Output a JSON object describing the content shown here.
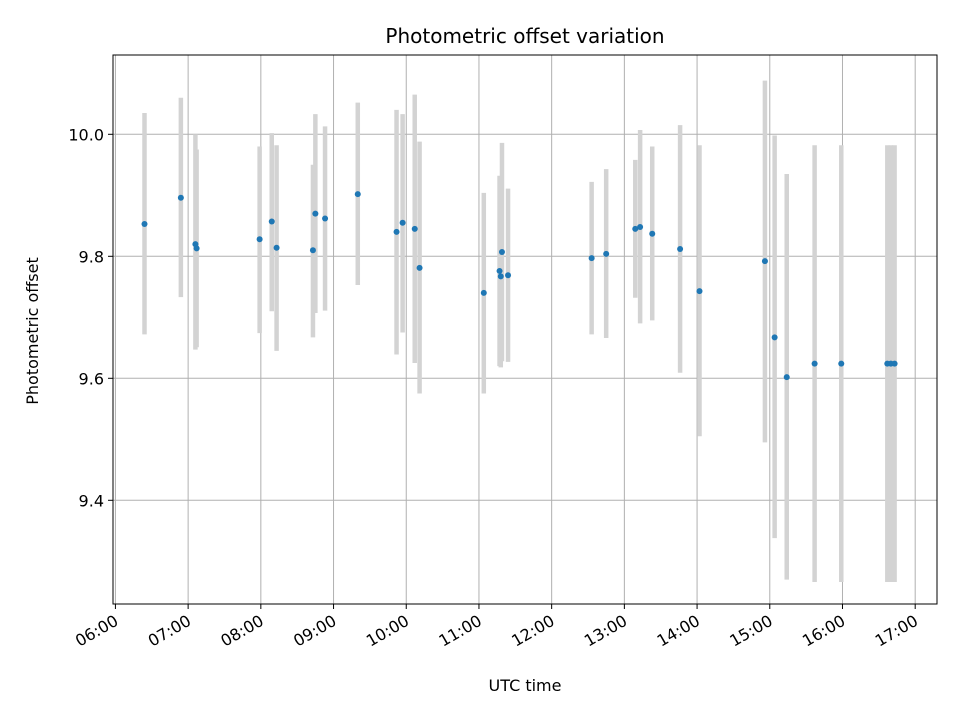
{
  "chart_data": {
    "type": "scatter",
    "title": "Photometric offset variation",
    "xlabel": "UTC time",
    "ylabel": "Photometric offset",
    "x_axis_type": "time",
    "xlim": [
      "05:58",
      "17:18"
    ],
    "ylim": [
      9.23,
      10.13
    ],
    "x_ticks": [
      "06:00",
      "07:00",
      "08:00",
      "09:00",
      "10:00",
      "11:00",
      "12:00",
      "13:00",
      "14:00",
      "15:00",
      "16:00",
      "17:00"
    ],
    "y_ticks": [
      9.4,
      9.6,
      9.8,
      10.0
    ],
    "grid": true,
    "point_color": "#1f77b4",
    "errorbar_color": "#d3d3d3",
    "points": [
      {
        "x": "06:24",
        "y": 9.853,
        "lo": 9.672,
        "hi": 10.035
      },
      {
        "x": "06:54",
        "y": 9.896,
        "lo": 9.733,
        "hi": 10.06
      },
      {
        "x": "07:06",
        "y": 9.82,
        "lo": 9.647,
        "hi": 10.0
      },
      {
        "x": "07:07",
        "y": 9.813,
        "lo": 9.651,
        "hi": 9.975
      },
      {
        "x": "07:59",
        "y": 9.828,
        "lo": 9.674,
        "hi": 9.98
      },
      {
        "x": "08:09",
        "y": 9.857,
        "lo": 9.71,
        "hi": 10.002
      },
      {
        "x": "08:13",
        "y": 9.814,
        "lo": 9.645,
        "hi": 9.982
      },
      {
        "x": "08:43",
        "y": 9.81,
        "lo": 9.667,
        "hi": 9.95
      },
      {
        "x": "08:45",
        "y": 9.87,
        "lo": 9.707,
        "hi": 10.033
      },
      {
        "x": "08:53",
        "y": 9.862,
        "lo": 9.711,
        "hi": 10.013
      },
      {
        "x": "09:20",
        "y": 9.902,
        "lo": 9.753,
        "hi": 10.052
      },
      {
        "x": "09:52",
        "y": 9.84,
        "lo": 9.639,
        "hi": 10.04
      },
      {
        "x": "09:57",
        "y": 9.855,
        "lo": 9.675,
        "hi": 10.033
      },
      {
        "x": "10:07",
        "y": 9.845,
        "lo": 9.625,
        "hi": 10.065
      },
      {
        "x": "10:11",
        "y": 9.781,
        "lo": 9.575,
        "hi": 9.988
      },
      {
        "x": "11:04",
        "y": 9.74,
        "lo": 9.575,
        "hi": 9.904
      },
      {
        "x": "11:17",
        "y": 9.776,
        "lo": 9.62,
        "hi": 9.932
      },
      {
        "x": "11:18",
        "y": 9.767,
        "lo": 9.618,
        "hi": 9.917
      },
      {
        "x": "11:19",
        "y": 9.807,
        "lo": 9.628,
        "hi": 9.986
      },
      {
        "x": "11:24",
        "y": 9.769,
        "lo": 9.627,
        "hi": 9.911
      },
      {
        "x": "12:33",
        "y": 9.797,
        "lo": 9.672,
        "hi": 9.922
      },
      {
        "x": "12:45",
        "y": 9.804,
        "lo": 9.666,
        "hi": 9.943
      },
      {
        "x": "13:09",
        "y": 9.845,
        "lo": 9.732,
        "hi": 9.958
      },
      {
        "x": "13:13",
        "y": 9.848,
        "lo": 9.69,
        "hi": 10.007
      },
      {
        "x": "13:23",
        "y": 9.837,
        "lo": 9.695,
        "hi": 9.98
      },
      {
        "x": "13:46",
        "y": 9.812,
        "lo": 9.609,
        "hi": 10.015
      },
      {
        "x": "14:02",
        "y": 9.743,
        "lo": 9.505,
        "hi": 9.982
      },
      {
        "x": "14:56",
        "y": 9.792,
        "lo": 9.495,
        "hi": 10.088
      },
      {
        "x": "15:04",
        "y": 9.667,
        "lo": 9.338,
        "hi": 9.998
      },
      {
        "x": "15:14",
        "y": 9.602,
        "lo": 9.27,
        "hi": 9.935
      },
      {
        "x": "15:37",
        "y": 9.624,
        "lo": 9.266,
        "hi": 9.982
      },
      {
        "x": "15:59",
        "y": 9.624,
        "lo": 9.266,
        "hi": 9.982
      },
      {
        "x": "16:37",
        "y": 9.624,
        "lo": 9.266,
        "hi": 9.982
      },
      {
        "x": "16:40",
        "y": 9.624,
        "lo": 9.266,
        "hi": 9.982
      },
      {
        "x": "16:43",
        "y": 9.624,
        "lo": 9.266,
        "hi": 9.982
      }
    ]
  }
}
